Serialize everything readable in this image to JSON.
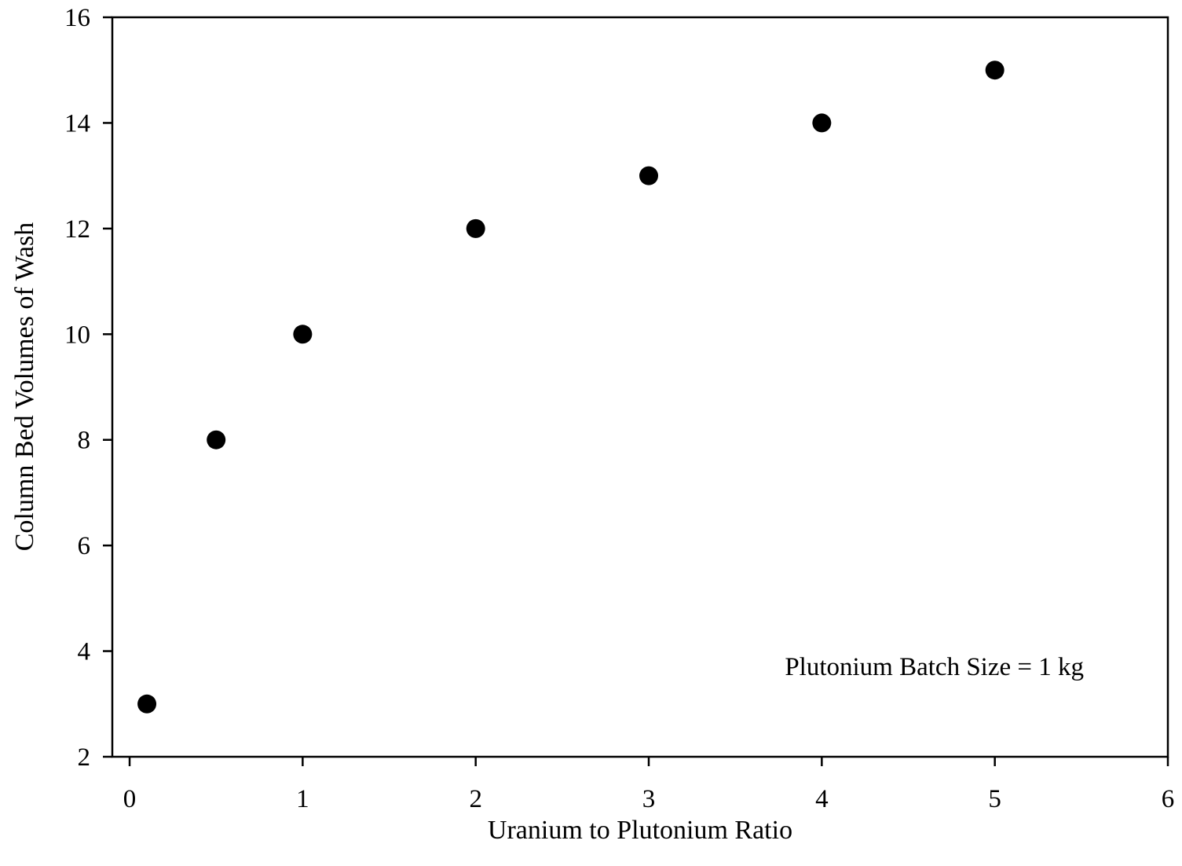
{
  "chart_data": {
    "type": "scatter",
    "title": "",
    "xlabel": "Uranium to Plutonium Ratio",
    "ylabel": "Column Bed Volumes of Wash",
    "xlim": [
      -0.1,
      6
    ],
    "ylim": [
      2,
      16
    ],
    "x_ticks": [
      0,
      1,
      2,
      3,
      4,
      5,
      6
    ],
    "y_ticks": [
      2,
      4,
      6,
      8,
      10,
      12,
      14,
      16
    ],
    "grid": false,
    "legend": "none",
    "series": [
      {
        "marker_color": "#000000",
        "points": [
          {
            "x": 0.1,
            "y": 3
          },
          {
            "x": 0.5,
            "y": 8
          },
          {
            "x": 1,
            "y": 10
          },
          {
            "x": 2,
            "y": 12
          },
          {
            "x": 3,
            "y": 13
          },
          {
            "x": 4,
            "y": 14
          },
          {
            "x": 5,
            "y": 15
          }
        ]
      }
    ],
    "annotations": [
      {
        "text": "Plutonium Batch Size = 1 kg",
        "placement": "lower-right"
      }
    ]
  }
}
